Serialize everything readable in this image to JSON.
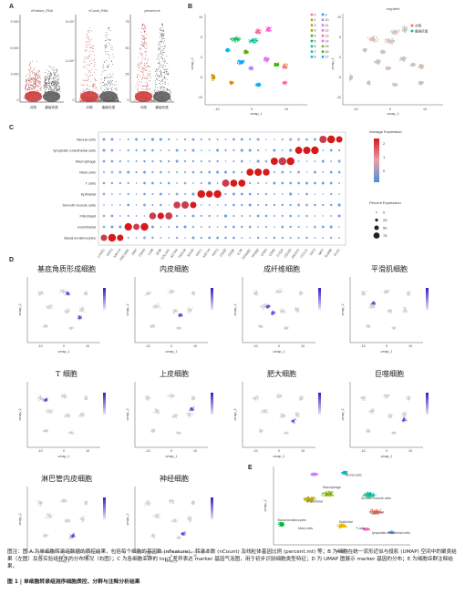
{
  "panel_labels": {
    "a": "A",
    "b": "B",
    "c": "C",
    "d": "D",
    "e": "E"
  },
  "panel_a": {
    "violins": [
      {
        "title": "nFeature_RNA",
        "ticks": [
          "9 000",
          "6 000",
          "3 000",
          "0"
        ],
        "groups": [
          "对照",
          "癫痕疙瘩"
        ]
      },
      {
        "title": "nCount_RNA",
        "ticks": [
          "2×10⁴",
          "1×10⁴",
          "0"
        ],
        "groups": [
          "对照",
          "癫痕疙瘩"
        ]
      },
      {
        "title": "percent.mt",
        "ticks": [
          "75",
          "50",
          "25",
          "0"
        ],
        "groups": [
          "对照",
          "癫痕疙瘩"
        ]
      }
    ]
  },
  "panel_b": {
    "left_axis_x": "umap_1",
    "left_axis_y": "umap_2",
    "cluster_legend": [
      "0",
      "1",
      "2",
      "3",
      "4",
      "5",
      "6",
      "7",
      "8",
      "9",
      "10",
      "11",
      "12",
      "13",
      "14",
      "15",
      "16",
      "17"
    ],
    "right_title": "orig.ident",
    "right_legend": [
      "对照",
      "癫痕疙瘩"
    ],
    "right_axis_x": "umap_1",
    "right_axis_y": "umap_2",
    "x_ticks": [
      "-10",
      "0",
      "10"
    ],
    "y_ticks": [
      "10",
      "5",
      "0",
      "-5",
      "-10"
    ]
  },
  "panel_c": {
    "cell_types": [
      "Neural cells",
      "lymphatic endothelial cells",
      "Macrophage",
      "Mast cells",
      "T cells",
      "Epithelial",
      "Smooth muscle cells",
      "Fibroblast",
      "Endothelial",
      "Basal keratinocytes"
    ],
    "genes": [
      "LYVE1",
      "KRT5",
      "KRT14",
      "PECAM1",
      "VWF",
      "CDH5",
      "LUM",
      "DCN",
      "COL1A1",
      "ACTA2",
      "TAGLN",
      "RGS5",
      "KRT1",
      "KRT10",
      "KRT2",
      "CD3D",
      "CD3E",
      "IL7R",
      "TPSAB1",
      "TPSB2",
      "CPA3",
      "CD68",
      "C1QA",
      "CD163",
      "PROX1",
      "CCL21",
      "TFF3",
      "MPZ",
      "S100B",
      "PLP1"
    ],
    "color_legend_title": "Average Expression",
    "color_ticks": [
      "2",
      "1",
      "0"
    ],
    "size_legend_title": "Percent Expression",
    "size_ticks": [
      "0",
      "25",
      "50",
      "75"
    ]
  },
  "panel_d": {
    "titles": [
      "基底角质形成细胞",
      "内皮细胞",
      "成纤维细胞",
      "平滑肌细胞",
      "T 细胞",
      "上皮细胞",
      "肥大细胞",
      "巨噬细胞",
      "淋巴管内皮细胞",
      "神经细胞"
    ],
    "axis_x": "umap_1",
    "axis_y": "umap_2",
    "x_ticks": [
      "-10",
      "0",
      "10"
    ]
  },
  "panel_e": {
    "labels": [
      "Neural cells",
      "Macrophage",
      "Mast cells",
      "T cells",
      "Endothelial",
      "Smooth muscle cells",
      "Fibroblast",
      "Basal keratinocytes",
      "Epithelial",
      "lymphatic endothelial cells"
    ],
    "axis_x": "umap_1",
    "axis_y": "umap_2"
  },
  "caption": "图注：图 A 为单细胞转录组数据的质控结果，包括每个细胞的基因数 (nFeature)、转录本数 (nCount) 及线粒体基因比例 (percent.mt) 等；B 为细胞在统一流形近似与投影 (UMAP) 空间中的聚类结果（左图）及各实验组样本的分布情况（右图）；C 为各细胞亚群的 top3 差异表达 marker 基因气泡图，用于初步识别细胞类型特征；D 为 UMAP 图展示 marker 基因的分布；E 为细胞亚群注释结果。",
  "figure_title": "图 1 | 单细胞转录组测序细胞质控、分群与注释分析结果",
  "colors": {
    "control": "#f06a6a",
    "keloid": "#16b9a0",
    "high_expr": "#d7191c",
    "low_expr": "#4a90d9",
    "feature_purple": "#5a3dd6"
  }
}
